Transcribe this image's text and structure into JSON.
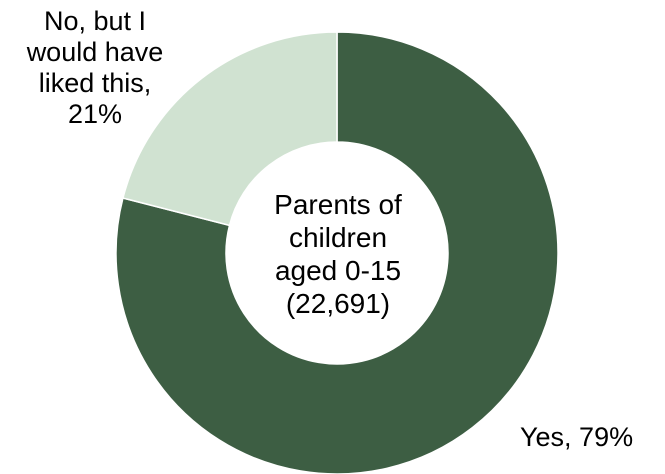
{
  "chart_data": {
    "type": "pie",
    "donut": true,
    "categories": [
      "Yes",
      "No, but I would have liked this"
    ],
    "values": [
      79,
      21
    ],
    "colors": [
      "#3d5e43",
      "#d0e2d1"
    ],
    "center_text_lines": [
      "Parents of",
      "children",
      "aged 0-15",
      "(22,691)"
    ],
    "slice_labels": {
      "yes": "Yes, 79%",
      "no_lines": [
        "No, but I",
        "would have",
        "liked this,",
        "21%"
      ]
    },
    "title": "",
    "legend": "none"
  }
}
